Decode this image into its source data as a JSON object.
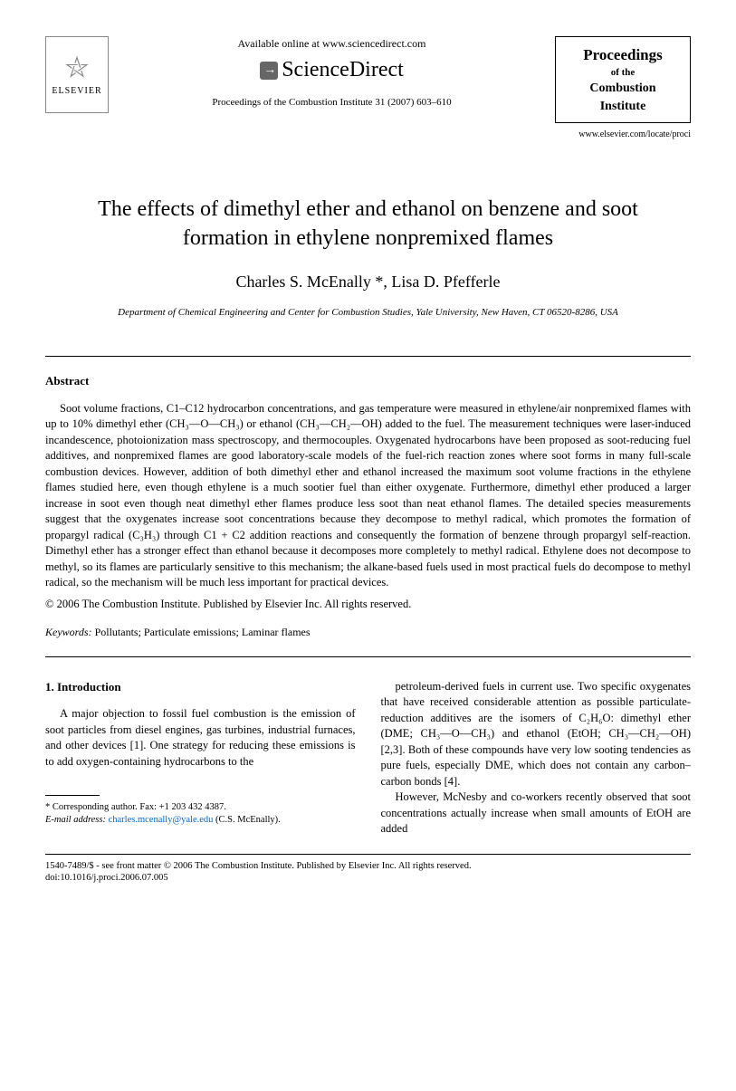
{
  "header": {
    "elsevier": "ELSEVIER",
    "available": "Available online at www.sciencedirect.com",
    "sciencedirect": "ScienceDirect",
    "citation": "Proceedings of the Combustion Institute 31 (2007) 603–610",
    "journal_proceedings": "Proceedings",
    "journal_ofthe": "of the",
    "journal_combustion": "Combustion",
    "journal_institute": "Institute",
    "journal_url": "www.elsevier.com/locate/proci"
  },
  "title": "The effects of dimethyl ether and ethanol on benzene and soot formation in ethylene nonpremixed flames",
  "authors": "Charles S. McEnally *, Lisa D. Pfefferle",
  "affiliation": "Department of Chemical Engineering and Center for Combustion Studies, Yale University, New Haven, CT 06520-8286, USA",
  "abstract": {
    "heading": "Abstract",
    "body": "Soot volume fractions, C1–C12 hydrocarbon concentrations, and gas temperature were measured in ethylene/air nonpremixed flames with up to 10% dimethyl ether (CH₃—O—CH₃) or ethanol (CH₃—CH₂—OH) added to the fuel. The measurement techniques were laser-induced incandescence, photoionization mass spectroscopy, and thermocouples. Oxygenated hydrocarbons have been proposed as soot-reducing fuel additives, and nonpremixed flames are good laboratory-scale models of the fuel-rich reaction zones where soot forms in many full-scale combustion devices. However, addition of both dimethyl ether and ethanol increased the maximum soot volume fractions in the ethylene flames studied here, even though ethylene is a much sootier fuel than either oxygenate. Furthermore, dimethyl ether produced a larger increase in soot even though neat dimethyl ether flames produce less soot than neat ethanol flames. The detailed species measurements suggest that the oxygenates increase soot concentrations because they decompose to methyl radical, which promotes the formation of propargyl radical (C₃H₃) through C1 + C2 addition reactions and consequently the formation of benzene through propargyl self-reaction. Dimethyl ether has a stronger effect than ethanol because it decomposes more completely to methyl radical. Ethylene does not decompose to methyl, so its flames are particularly sensitive to this mechanism; the alkane-based fuels used in most practical fuels do decompose to methyl radical, so the mechanism will be much less important for practical devices.",
    "copyright": "© 2006 The Combustion Institute. Published by Elsevier Inc. All rights reserved."
  },
  "keywords": {
    "label": "Keywords:",
    "values": "Pollutants; Particulate emissions; Laminar flames"
  },
  "intro": {
    "heading": "1. Introduction",
    "left_p1": "A major objection to fossil fuel combustion is the emission of soot particles from diesel engines, gas turbines, industrial furnaces, and other devices [1]. One strategy for reducing these emissions is to add oxygen-containing hydrocarbons to the",
    "right_p1": "petroleum-derived fuels in current use. Two specific oxygenates that have received considerable attention as possible particulate-reduction additives are the isomers of C₂H₆O: dimethyl ether (DME; CH₃—O—CH₃) and ethanol (EtOH; CH₃—CH₂—OH) [2,3]. Both of these compounds have very low sooting tendencies as pure fuels, especially DME, which does not contain any carbon–carbon bonds [4].",
    "right_p2": "However, McNesby and co-workers recently observed that soot concentrations actually increase when small amounts of EtOH are added"
  },
  "footnote": {
    "corresponding": "* Corresponding author. Fax: +1 203 432 4387.",
    "email_label": "E-mail address:",
    "email": "charles.mcenally@yale.edu",
    "email_suffix": "(C.S. McEnally)."
  },
  "footer": {
    "line1": "1540-7489/$ - see front matter © 2006 The Combustion Institute. Published by Elsevier Inc. All rights reserved.",
    "line2": "doi:10.1016/j.proci.2006.07.005"
  }
}
